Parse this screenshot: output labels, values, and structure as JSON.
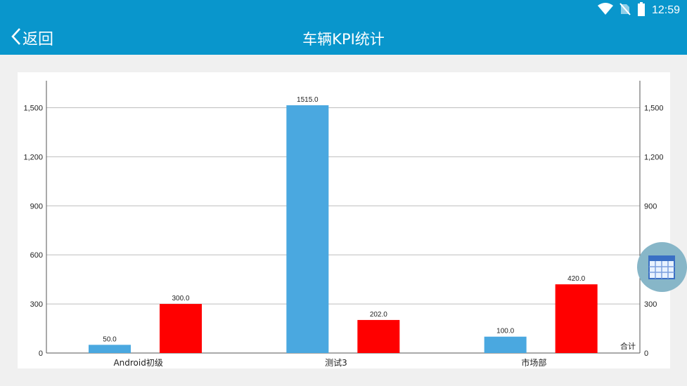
{
  "status_bar": {
    "time": "12:59",
    "icons": [
      "wifi-icon",
      "no-sim-icon",
      "battery-icon"
    ]
  },
  "app_bar": {
    "back_label": "返回",
    "title": "车辆KPI统计"
  },
  "fab": {
    "icon": "table-icon"
  },
  "colors": {
    "primary": "#0996cc",
    "series_blue": "#4aa8e0",
    "series_red": "#ff0000",
    "fab": "#87b6c8"
  },
  "chart_data": {
    "type": "bar",
    "categories": [
      "Android初级",
      "测试3",
      "市场部"
    ],
    "series": [
      {
        "values": [
          50.0,
          1515.0,
          100.0
        ],
        "color": "#4aa8e0"
      },
      {
        "values": [
          300.0,
          202.0,
          420.0
        ],
        "color": "#ff0000"
      }
    ],
    "data_labels": [
      [
        "50.0",
        "1515.0",
        "100.0"
      ],
      [
        "300.0",
        "202.0",
        "420.0"
      ]
    ],
    "y_ticks": [
      "0",
      "300",
      "600",
      "900",
      "1,200",
      "1,500"
    ],
    "y_tick_values": [
      0,
      300,
      600,
      900,
      1200,
      1500
    ],
    "ylim": [
      0,
      1665
    ],
    "dual_y_axis": true,
    "grid": true,
    "legend": "合计",
    "legend_position": "bottom-right",
    "title": "",
    "xlabel": "",
    "ylabel": ""
  }
}
